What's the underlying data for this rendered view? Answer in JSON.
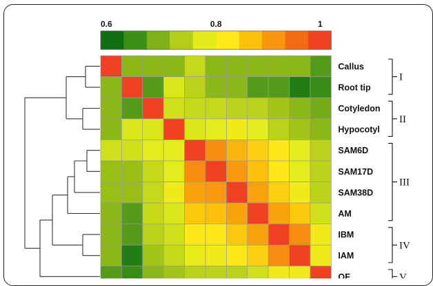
{
  "chart_data": {
    "type": "heatmap",
    "title": "",
    "colorbar": {
      "ticks": [
        "0.6",
        "0.8",
        "1"
      ],
      "tick_values": [
        0.6,
        0.8,
        1.0
      ],
      "range": [
        0.6,
        1.0
      ],
      "colors": [
        "#0f6e12",
        "#3c9018",
        "#7fb018",
        "#b3cd18",
        "#e2ec1c",
        "#fde818",
        "#fbc20c",
        "#f8970f",
        "#f46a14",
        "#ee4223"
      ]
    },
    "rows": [
      "Callus",
      "Root tip",
      "Cotyledon",
      "Hypocotyl",
      "SAM6D",
      "SAM17D",
      "SAM38D",
      "AM",
      "IBM",
      "IAM",
      "OF"
    ],
    "groups": [
      {
        "label": "I",
        "rows": [
          "Callus",
          "Root tip"
        ]
      },
      {
        "label": "II",
        "rows": [
          "Cotyledon",
          "Hypocotyl"
        ]
      },
      {
        "label": "III",
        "rows": [
          "SAM6D",
          "SAM17D",
          "SAM38D",
          "AM"
        ]
      },
      {
        "label": "IV",
        "rows": [
          "IBM",
          "IAM"
        ]
      },
      {
        "label": "V",
        "rows": [
          "OF"
        ]
      }
    ],
    "values": [
      [
        1.0,
        0.7,
        0.7,
        0.7,
        0.75,
        0.7,
        0.7,
        0.7,
        0.7,
        0.7,
        0.66
      ],
      [
        0.7,
        1.0,
        0.66,
        0.77,
        0.74,
        0.7,
        0.7,
        0.66,
        0.66,
        0.62,
        0.64
      ],
      [
        0.7,
        0.66,
        1.0,
        0.76,
        0.75,
        0.75,
        0.74,
        0.74,
        0.72,
        0.7,
        0.68
      ],
      [
        0.7,
        0.77,
        0.77,
        1.0,
        0.77,
        0.78,
        0.8,
        0.78,
        0.74,
        0.72,
        0.7
      ],
      [
        0.76,
        0.76,
        0.78,
        0.78,
        1.0,
        0.92,
        0.88,
        0.85,
        0.82,
        0.78,
        0.74
      ],
      [
        0.71,
        0.71,
        0.75,
        0.78,
        0.92,
        1.0,
        0.91,
        0.87,
        0.82,
        0.78,
        0.74
      ],
      [
        0.71,
        0.71,
        0.75,
        0.8,
        0.9,
        0.91,
        1.0,
        0.9,
        0.85,
        0.8,
        0.74
      ],
      [
        0.7,
        0.66,
        0.75,
        0.77,
        0.86,
        0.87,
        0.9,
        1.0,
        0.9,
        0.86,
        0.76
      ],
      [
        0.7,
        0.66,
        0.74,
        0.76,
        0.82,
        0.82,
        0.86,
        0.9,
        1.0,
        0.92,
        0.8
      ],
      [
        0.7,
        0.62,
        0.72,
        0.75,
        0.79,
        0.8,
        0.82,
        0.85,
        0.92,
        1.0,
        0.8
      ],
      [
        0.66,
        0.64,
        0.7,
        0.72,
        0.74,
        0.74,
        0.74,
        0.76,
        0.8,
        0.8,
        1.0
      ]
    ],
    "grid": true,
    "legend_position": "top"
  }
}
